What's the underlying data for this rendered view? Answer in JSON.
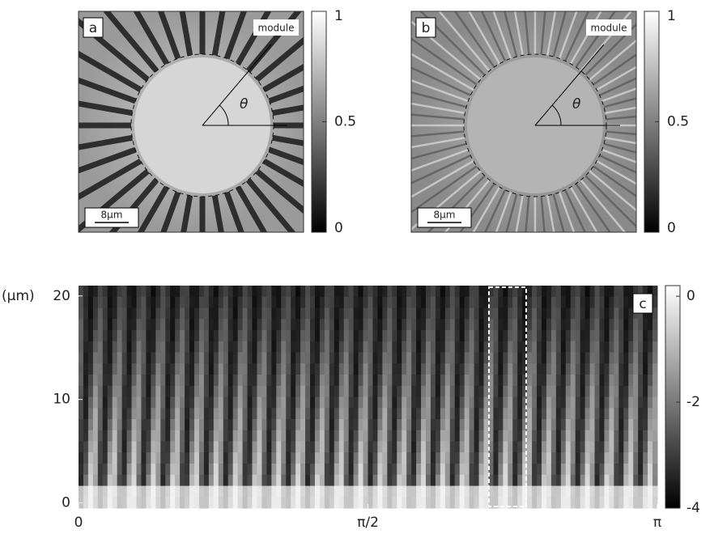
{
  "panels": [
    {
      "label": "a",
      "tag": "module",
      "theta": "θ",
      "scale_bar": "8μm",
      "colorbar": {
        "lim": [
          0,
          1
        ],
        "ticks": [
          0,
          0.5,
          1
        ]
      }
    },
    {
      "label": "b",
      "tag": "module",
      "theta": "θ",
      "scale_bar": "8μm",
      "colorbar": {
        "lim": [
          0,
          1
        ],
        "ticks": [
          0,
          0.5,
          1
        ]
      }
    }
  ],
  "panel_c": {
    "label": "c",
    "y_unit": "(μm)",
    "ylim": [
      -0.5,
      21
    ],
    "yticks": [
      0,
      10,
      20
    ],
    "xlim": [
      0,
      3.1416
    ],
    "xticks": [
      0,
      {
        "value": 1.5708,
        "label": "π/2"
      },
      {
        "value": 3.1416,
        "label": "π"
      }
    ],
    "colorbar": {
      "lim": [
        -4,
        0.2
      ],
      "ticks": [
        -4,
        -2,
        0
      ]
    }
  }
}
